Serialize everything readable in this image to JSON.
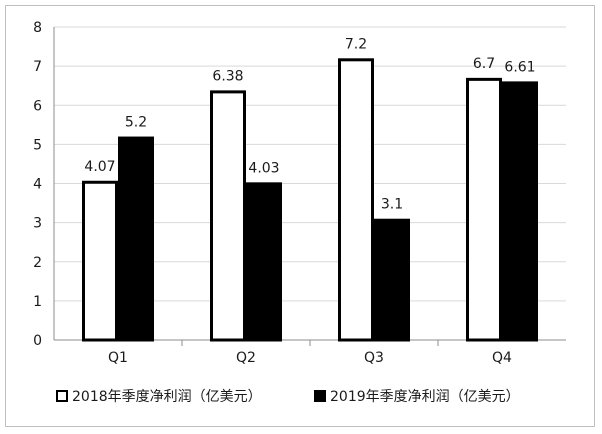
{
  "chart_data": {
    "type": "bar",
    "categories": [
      "Q1",
      "Q2",
      "Q3",
      "Q4"
    ],
    "series": [
      {
        "name": "2018年季度净利润（亿美元）",
        "values": [
          4.07,
          6.38,
          7.2,
          6.7
        ],
        "color": "#ffffff",
        "stroke": "#000000"
      },
      {
        "name": "2019年季度净利润（亿美元）",
        "values": [
          5.2,
          4.03,
          3.1,
          6.61
        ],
        "color": "#000000",
        "stroke": "#000000"
      }
    ],
    "data_labels": [
      [
        "4.07",
        "6.38",
        "7.2",
        "6.7"
      ],
      [
        "5.2",
        "4.03",
        "3.1",
        "6.61"
      ]
    ],
    "ylim": [
      0,
      8
    ],
    "yticks": [
      "0",
      "1",
      "2",
      "3",
      "4",
      "5",
      "6",
      "7",
      "8"
    ],
    "grid": true,
    "legend_position": "bottom",
    "gridline_color": "#d9d9d9",
    "title": "",
    "xlabel": "",
    "ylabel": ""
  }
}
